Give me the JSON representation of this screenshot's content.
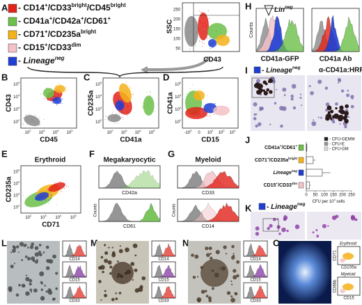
{
  "panels": {
    "A": {
      "letter": "A",
      "legend": [
        {
          "segments": [
            "- CD14",
            "+",
            "/CD33",
            "bright",
            "/CD45",
            "bright"
          ],
          "color": "#e2231a"
        },
        {
          "segments": [
            "- CD41a",
            "+",
            "/CD42a",
            "+",
            "/CD61",
            "+"
          ],
          "color": "#6cc04a"
        },
        {
          "segments": [
            "- CD71",
            "+",
            "/CD235a",
            "bright"
          ],
          "color": "#f5b21b"
        },
        {
          "segments": [
            "- CD15",
            "+",
            "/CD33",
            "dim"
          ],
          "color": "#f4c2c8"
        },
        {
          "segments": [
            "- Lineage",
            "neg"
          ],
          "color": "#1f3fd4"
        }
      ],
      "x_label": "CD43",
      "y_label": "SSC",
      "yticks": [
        "50",
        "100",
        "150",
        "200",
        "250"
      ]
    },
    "B": {
      "letter": "B",
      "x_label": "CD45",
      "y_label": "CD43",
      "xticks": [
        [
          "10",
          "2"
        ],
        [
          "10",
          "3"
        ],
        [
          "10",
          "4"
        ],
        [
          "10",
          "5"
        ]
      ],
      "yticks": [
        [
          "10",
          "2"
        ],
        [
          "10",
          "3"
        ],
        [
          "10",
          "4"
        ],
        [
          "10",
          "5"
        ]
      ]
    },
    "C": {
      "letter": "C",
      "x_label": "CD41a",
      "y_label": "CD235a",
      "xticks": [
        [
          "10",
          "2"
        ],
        [
          "10",
          "3"
        ],
        [
          "10",
          "4"
        ],
        [
          "10",
          "5"
        ]
      ],
      "yticks": [
        [
          "10",
          "2"
        ],
        [
          "10",
          "3"
        ],
        [
          "10",
          "4"
        ],
        [
          "10",
          "5"
        ]
      ]
    },
    "D": {
      "letter": "D",
      "x_label": "CD15",
      "y_label": "CD41a",
      "xticks": [
        [
          "-10",
          "9"
        ],
        [
          "0"
        ],
        [
          "10",
          "2"
        ],
        [
          "10",
          "3"
        ],
        [
          "10",
          "4"
        ]
      ],
      "yticks": [
        [
          "10",
          "2"
        ],
        [
          "10",
          "3"
        ],
        [
          "10",
          "4"
        ],
        [
          "10",
          "5"
        ]
      ]
    },
    "E": {
      "letter": "E",
      "title": "Erythroid",
      "x_label": "CD71",
      "y_label": "CD235a",
      "xticks": [
        [
          "10",
          "2"
        ],
        [
          "10",
          "3"
        ],
        [
          "10",
          "4"
        ],
        [
          "10",
          "5"
        ]
      ],
      "yticks": [
        [
          "10",
          "2"
        ],
        [
          "10",
          "3"
        ],
        [
          "10",
          "4"
        ],
        [
          "10",
          "5"
        ]
      ]
    },
    "F": {
      "letter": "F",
      "title": "Megakaryocytic",
      "y_label": "Counts",
      "hist_labels": [
        "CD42a",
        "CD61"
      ]
    },
    "G": {
      "letter": "G",
      "title": "Myeloid",
      "y_label": "Counts",
      "hist_labels": [
        "CD33",
        "CD14"
      ]
    },
    "H": {
      "letter": "H",
      "y_label": "Counts",
      "annotation": [
        "Lin",
        "neg"
      ],
      "hist_labels": [
        "CD41a-GFP",
        "CD41a Ab"
      ]
    },
    "I": {
      "letter": "I",
      "legend": [
        "- Lineage",
        "neg"
      ],
      "stain": "α-CD41a:HRP"
    },
    "J": {
      "letter": "J",
      "categories": [
        [
          "CD41a",
          "+",
          "/CD61",
          "+"
        ],
        [
          "CD71",
          "+",
          "/CD235a",
          "bright"
        ],
        [
          "Lineage",
          "neg"
        ],
        [
          "CD15",
          "+",
          "/CD33",
          "dim"
        ]
      ],
      "colors": [
        "#6cc04a",
        "#f5b21b",
        "#1f3fd4",
        "#f4c2c8"
      ],
      "values": [
        3,
        38,
        88,
        18
      ],
      "errors": [
        2,
        12,
        45,
        6
      ],
      "legend": [
        "- CFU-GEMM",
        "- CFU-E",
        "- CFU-GM"
      ],
      "x_label": [
        "CFU per 10",
        "4",
        " cells"
      ],
      "xlim": [
        0,
        250
      ],
      "xticks": [
        0,
        50,
        100,
        150,
        200,
        250
      ]
    },
    "K": {
      "letter": "K",
      "legend": [
        "- Lineage",
        "neg"
      ]
    },
    "L": {
      "letter": "L",
      "hist_labels": [
        "CD14",
        "CD15",
        "CD33"
      ]
    },
    "M": {
      "letter": "M",
      "hist_labels": [
        "CD14",
        "CD15",
        "CD33"
      ]
    },
    "N": {
      "letter": "N",
      "hist_labels": [
        "CD14",
        "CD15",
        "CD33"
      ]
    },
    "O": {
      "letter": "O",
      "labels": [
        "Erythroid",
        "Myeloid"
      ],
      "axes": [
        "CD71",
        "CD235a",
        "CD66b",
        "CD15"
      ]
    }
  }
}
